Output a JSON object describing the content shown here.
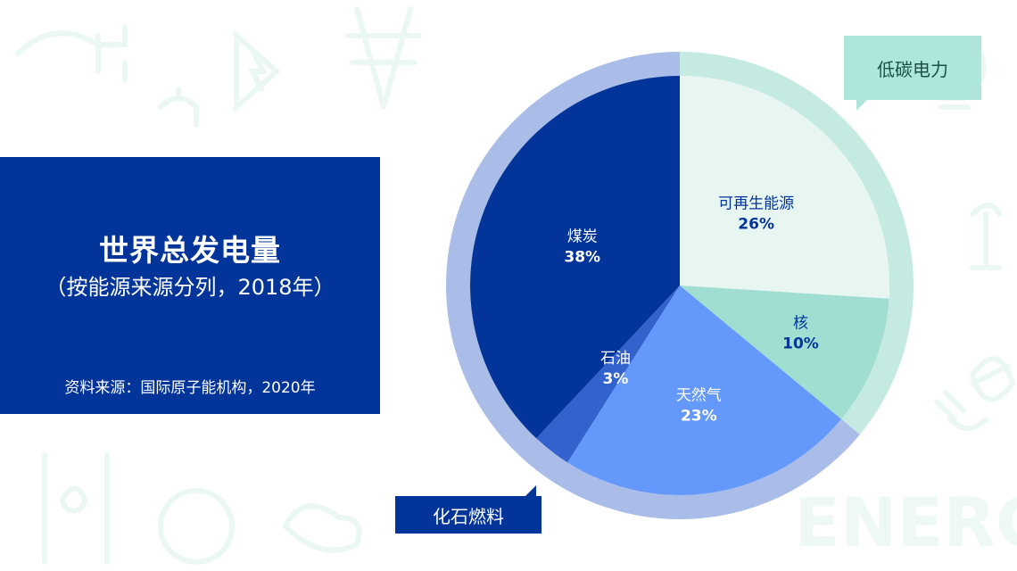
{
  "header": {
    "title": "世界总发电量",
    "subtitle": "（按能源来源分列，2018年）",
    "source": "资料来源：国际原子能机构，2020年"
  },
  "callouts": {
    "low_carbon": "低碳电力",
    "fossil": "化石燃料"
  },
  "colors": {
    "renewable": "#e8f6f2",
    "nuclear": "#9fded0",
    "gas": "#6498fa",
    "oil": "#3462cc",
    "coal": "#02349a",
    "ring_low_carbon": "#c4eae2",
    "ring_fossil": "#a9bde8",
    "label_dark": "#02349a",
    "label_light": "#ffffff"
  },
  "chart_data": {
    "type": "pie",
    "start_angle_deg": 0,
    "direction": "clockwise",
    "slices": [
      {
        "name": "可再生能源",
        "value": 26,
        "label": "26%",
        "color": "#e8f6f2",
        "text_color": "#02349a"
      },
      {
        "name": "核",
        "value": 10,
        "label": "10%",
        "color": "#9fded0",
        "text_color": "#02349a"
      },
      {
        "name": "天然气",
        "value": 23,
        "label": "23%",
        "color": "#6498fa",
        "text_color": "#ffffff"
      },
      {
        "name": "石油",
        "value": 3,
        "label": "3%",
        "color": "#3462cc",
        "text_color": "#ffffff"
      },
      {
        "name": "煤炭",
        "value": 38,
        "label": "38%",
        "color": "#02349a",
        "text_color": "#ffffff"
      }
    ],
    "groups": [
      {
        "name": "低碳电力",
        "members": [
          "可再生能源",
          "核"
        ],
        "color": "#c4eae2"
      },
      {
        "name": "化石燃料",
        "members": [
          "天然气",
          "石油",
          "煤炭"
        ],
        "color": "#a9bde8"
      }
    ]
  }
}
